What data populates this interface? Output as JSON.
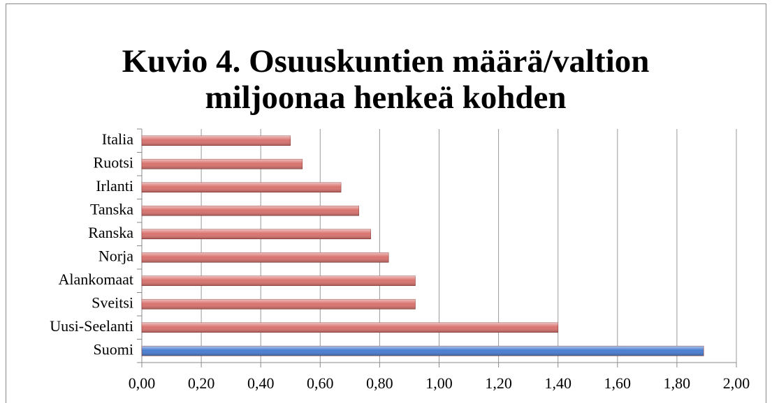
{
  "chart_data": {
    "type": "bar",
    "orientation": "horizontal",
    "title": "Kuvio 4. Osuuskuntien määrä/valtion miljoonaa henkeä kohden",
    "categories": [
      "Italia",
      "Ruotsi",
      "Irlanti",
      "Tanska",
      "Ranska",
      "Norja",
      "Alankomaat",
      "Sveitsi",
      "Uusi-Seelanti",
      "Suomi"
    ],
    "values": [
      0.5,
      0.54,
      0.67,
      0.73,
      0.77,
      0.83,
      0.92,
      0.92,
      1.4,
      1.89
    ],
    "colors": [
      "#d9736f",
      "#d9736f",
      "#d9736f",
      "#d9736f",
      "#d9736f",
      "#d9736f",
      "#d9736f",
      "#d9736f",
      "#d9736f",
      "#4a7ed0"
    ],
    "xlim": [
      0,
      2
    ],
    "xticks": [
      {
        "value": 0,
        "label": "0,00"
      },
      {
        "value": 0.2,
        "label": "0,20"
      },
      {
        "value": 0.4,
        "label": "0,40"
      },
      {
        "value": 0.6,
        "label": "0,60"
      },
      {
        "value": 0.8,
        "label": "0,80"
      },
      {
        "value": 1.0,
        "label": "1,00"
      },
      {
        "value": 1.2,
        "label": "1,20"
      },
      {
        "value": 1.4,
        "label": "1,40"
      },
      {
        "value": 1.6,
        "label": "1,60"
      },
      {
        "value": 1.8,
        "label": "1,80"
      },
      {
        "value": 2.0,
        "label": "2,00"
      }
    ],
    "grid": true
  }
}
